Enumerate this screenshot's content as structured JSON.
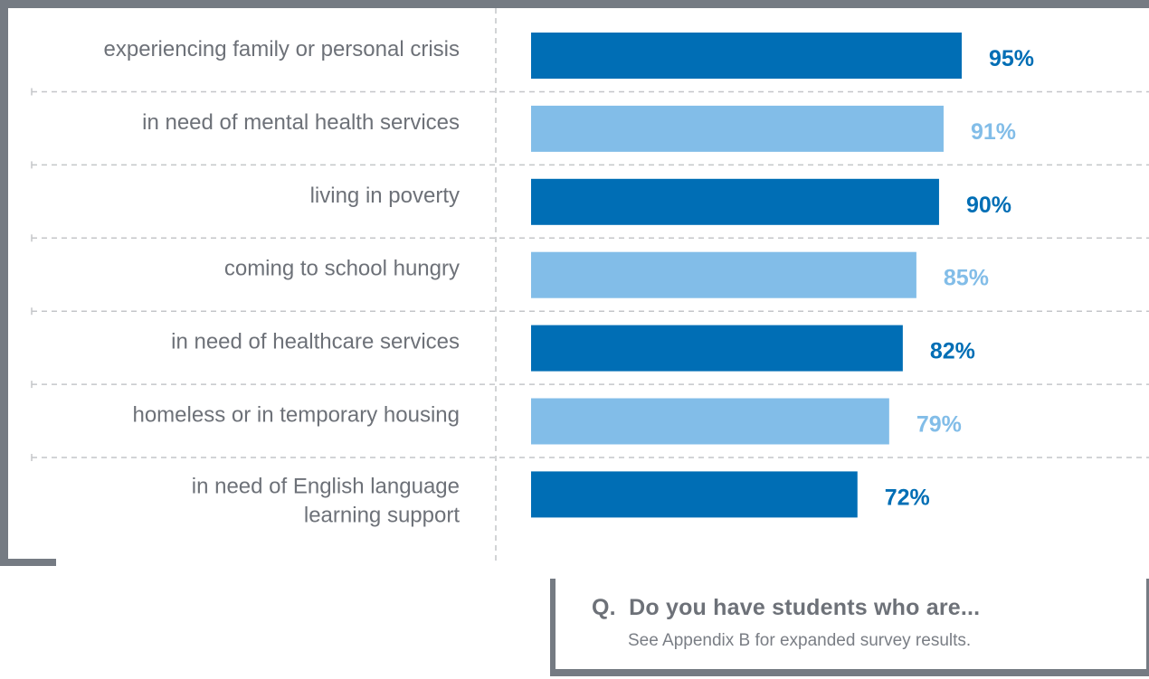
{
  "chart_data": {
    "type": "bar",
    "orientation": "horizontal",
    "categories": [
      [
        "experiencing family or personal crisis"
      ],
      [
        "in need of mental health services"
      ],
      [
        "living in poverty"
      ],
      [
        "coming to school hungry"
      ],
      [
        "in need of healthcare services"
      ],
      [
        "homeless or in temporary housing"
      ],
      [
        "in need of English language",
        "learning support"
      ]
    ],
    "values": [
      95,
      91,
      90,
      85,
      82,
      79,
      72
    ],
    "value_labels": [
      "95%",
      "91%",
      "90%",
      "85%",
      "82%",
      "79%",
      "72%"
    ],
    "unit": "%",
    "xlim": [
      0,
      100
    ],
    "colors": [
      "#006eb5",
      "#82bde8",
      "#006eb5",
      "#82bde8",
      "#006eb5",
      "#82bde8",
      "#006eb5"
    ],
    "grid": "dashed row separators"
  },
  "question": {
    "prefix": "Q.",
    "text": "Do you have students who are...",
    "note": "See Appendix B for expanded survey results."
  }
}
